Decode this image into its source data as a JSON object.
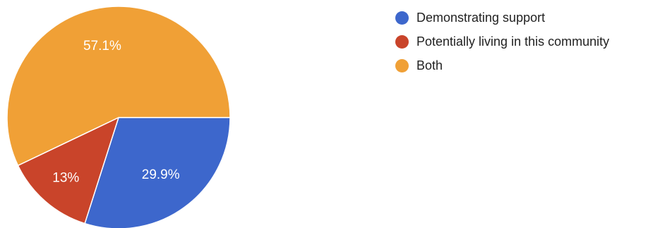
{
  "chart_data": {
    "type": "pie",
    "slices": [
      {
        "label": "Demonstrating support",
        "value": 29.9,
        "display": "29.9%",
        "color": "#3d67cc"
      },
      {
        "label": "Potentially living in this community",
        "value": 13,
        "display": "13%",
        "color": "#c9442a"
      },
      {
        "label": "Both",
        "value": 57.1,
        "display": "57.1%",
        "color": "#f0a036"
      }
    ],
    "legend_position": "top-right"
  }
}
